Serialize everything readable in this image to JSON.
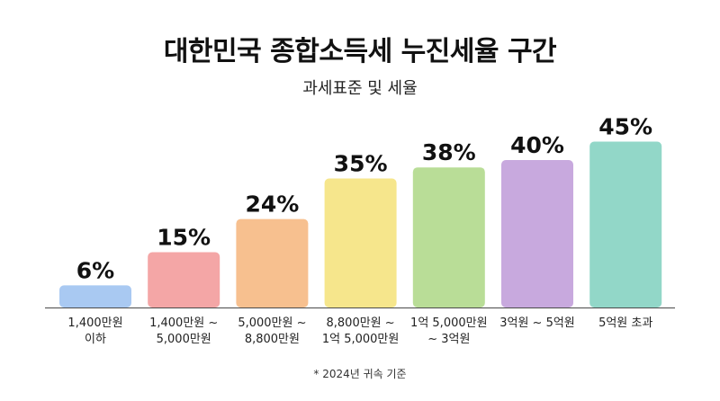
{
  "chart_data": {
    "type": "bar",
    "title": "대한민국 종합소득세 누진세율 구간",
    "subtitle": "과세표준 및 세율",
    "categories": [
      [
        "1,400만원",
        "이하"
      ],
      [
        "1,400만원 ~",
        "5,000만원"
      ],
      [
        "5,000만원 ~",
        "8,800만원"
      ],
      [
        "8,800만원 ~",
        "1억 5,000만원"
      ],
      [
        "1억 5,000만원",
        "~ 3억원"
      ],
      [
        "3억원 ~ 5억원"
      ],
      [
        "5억원 초과"
      ]
    ],
    "values": [
      6,
      15,
      24,
      35,
      38,
      40,
      45
    ],
    "value_labels": [
      "6%",
      "15%",
      "24%",
      "35%",
      "38%",
      "40%",
      "45%"
    ],
    "colors": [
      "#a9c9f2",
      "#f4a6a6",
      "#f7c08f",
      "#f6e68c",
      "#b9dd97",
      "#c8a9de",
      "#92d7c8"
    ],
    "ylim": [
      0,
      50
    ],
    "grid": false,
    "legend": "none",
    "footnote": "* 2024년 귀속 기준"
  }
}
